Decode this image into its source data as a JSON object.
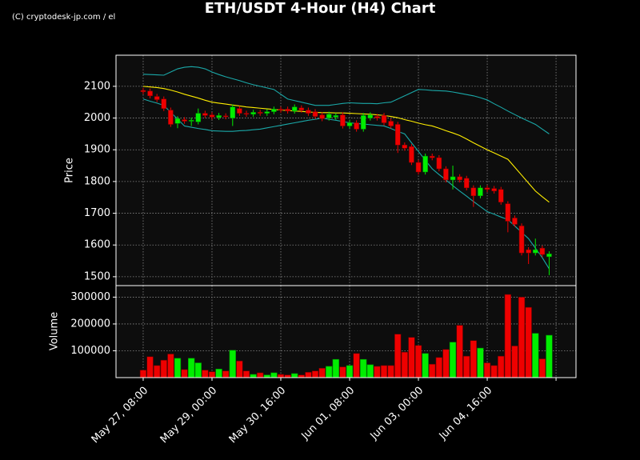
{
  "watermark": "(C) cryptodesk-jp.com / el",
  "title": "ETH/USDT 4-Hour (H4) Chart",
  "chart_data": [
    {
      "type": "candlestick",
      "ylabel": "Price",
      "x": [
        "May 27, 08:00",
        "May 27, 12:00",
        "May 27, 16:00",
        "May 27, 20:00",
        "May 28, 00:00",
        "May 28, 04:00",
        "May 28, 08:00",
        "May 28, 12:00",
        "May 28, 16:00",
        "May 28, 20:00",
        "May 29, 00:00",
        "May 29, 04:00",
        "May 29, 08:00",
        "May 29, 12:00",
        "May 29, 16:00",
        "May 29, 20:00",
        "May 30, 00:00",
        "May 30, 04:00",
        "May 30, 08:00",
        "May 30, 12:00",
        "May 30, 16:00",
        "May 30, 20:00",
        "May 31, 00:00",
        "May 31, 04:00",
        "May 31, 08:00",
        "May 31, 12:00",
        "May 31, 16:00",
        "May 31, 20:00",
        "Jun 01, 00:00",
        "Jun 01, 04:00",
        "Jun 01, 08:00",
        "Jun 01, 12:00",
        "Jun 01, 16:00",
        "Jun 01, 20:00",
        "Jun 02, 00:00",
        "Jun 02, 04:00",
        "Jun 02, 08:00",
        "Jun 02, 12:00",
        "Jun 02, 16:00",
        "Jun 02, 20:00",
        "Jun 03, 00:00",
        "Jun 03, 04:00",
        "Jun 03, 08:00",
        "Jun 03, 12:00",
        "Jun 03, 16:00",
        "Jun 03, 20:00",
        "Jun 04, 00:00",
        "Jun 04, 04:00",
        "Jun 04, 08:00",
        "Jun 04, 12:00",
        "Jun 04, 16:00",
        "Jun 04, 20:00",
        "Jun 05, 00:00",
        "Jun 05, 04:00",
        "Jun 05, 08:00",
        "Jun 05, 12:00",
        "Jun 05, 16:00",
        "Jun 05, 20:00",
        "Jun 06, 00:00",
        "Jun 06, 04:00"
      ],
      "open": [
        2087,
        2085,
        2068,
        2060,
        2025,
        1983,
        1995,
        1990,
        1988,
        2015,
        2010,
        2002,
        2007,
        2000,
        2030,
        2015,
        2012,
        2018,
        2015,
        2020,
        2028,
        2028,
        2022,
        2032,
        2025,
        2020,
        2010,
        2000,
        2003,
        2010,
        1975,
        1985,
        1965,
        2000,
        2005,
        2008,
        1990,
        1980,
        1915,
        1910,
        1860,
        1830,
        1880,
        1875,
        1840,
        1805,
        1815,
        1810,
        1780,
        1755,
        1780,
        1778,
        1775,
        1730,
        1685,
        1660,
        1585,
        1575,
        1590,
        1563
      ],
      "high": [
        2095,
        2093,
        2076,
        2068,
        2033,
        2006,
        2003,
        2001,
        2030,
        2023,
        2018,
        2016,
        2015,
        2043,
        2038,
        2023,
        2026,
        2026,
        2028,
        2036,
        2036,
        2036,
        2043,
        2040,
        2033,
        2028,
        2018,
        2020,
        2016,
        2018,
        1993,
        1993,
        2016,
        2018,
        2013,
        2016,
        1998,
        1988,
        1923,
        1918,
        1868,
        1888,
        1888,
        1883,
        1848,
        1850,
        1823,
        1818,
        1788,
        1788,
        1788,
        1786,
        1783,
        1738,
        1693,
        1668,
        1593,
        1620,
        1598,
        1580
      ],
      "low": [
        2075,
        2062,
        2050,
        2022,
        1972,
        1968,
        1982,
        1975,
        1980,
        2000,
        1995,
        1994,
        1996,
        1975,
        2007,
        2004,
        2004,
        2007,
        2007,
        2012,
        2017,
        2014,
        2014,
        2017,
        2007,
        1997,
        1990,
        1992,
        1995,
        1967,
        1967,
        1957,
        1957,
        1992,
        1992,
        1977,
        1967,
        1890,
        1897,
        1852,
        1822,
        1822,
        1867,
        1832,
        1797,
        1775,
        1797,
        1772,
        1720,
        1747,
        1767,
        1762,
        1727,
        1640,
        1657,
        1567,
        1540,
        1567,
        1562,
        1505
      ],
      "close": [
        2083,
        2070,
        2058,
        2030,
        1980,
        1998,
        1990,
        1993,
        2015,
        2008,
        2003,
        2008,
        2004,
        2035,
        2015,
        2012,
        2018,
        2015,
        2020,
        2028,
        2025,
        2022,
        2035,
        2025,
        2015,
        2005,
        1998,
        2012,
        2008,
        1975,
        1985,
        1965,
        2008,
        2010,
        2000,
        1985,
        1975,
        1915,
        1905,
        1860,
        1830,
        1880,
        1875,
        1840,
        1805,
        1815,
        1805,
        1780,
        1755,
        1780,
        1775,
        1770,
        1735,
        1675,
        1665,
        1575,
        1575,
        1585,
        1570,
        1572
      ],
      "up_color": "#00ee00",
      "down_color": "#ee0000",
      "lines": [
        {
          "color": "#ffee00",
          "values": [
            2100,
            2098,
            2096,
            2093,
            2088,
            2082,
            2075,
            2069,
            2063,
            2056,
            2050,
            2047,
            2044,
            2041,
            2038,
            2035,
            2033,
            2031,
            2029,
            2027,
            2025,
            2024,
            2022,
            2021,
            2019,
            2018,
            2017,
            2017,
            2016,
            2016,
            2015,
            2014,
            2013,
            2012,
            2010,
            2008,
            2005,
            2001,
            1995,
            1990,
            1984,
            1979,
            1975,
            1968,
            1960,
            1953,
            1945,
            1934,
            1922,
            1911,
            1900,
            1890,
            1880,
            1870,
            1845,
            1820,
            1795,
            1770,
            1752,
            1735
          ]
        },
        {
          "color": "#1aa8a8",
          "values": [
            2138,
            2137,
            2136,
            2135,
            2145,
            2155,
            2160,
            2162,
            2160,
            2155,
            2145,
            2137,
            2130,
            2124,
            2118,
            2111,
            2105,
            2100,
            2095,
            2090,
            2075,
            2060,
            2055,
            2050,
            2045,
            2040,
            2040,
            2040,
            2043,
            2046,
            2048,
            2047,
            2046,
            2046,
            2045,
            2048,
            2050,
            2060,
            2070,
            2080,
            2090,
            2089,
            2087,
            2086,
            2085,
            2082,
            2078,
            2074,
            2070,
            2064,
            2057,
            2045,
            2034,
            2022,
            2011,
            2000,
            1990,
            1980,
            1965,
            1950
          ]
        },
        {
          "color": "#1aa8a8",
          "values": [
            2060,
            2053,
            2047,
            2040,
            2018,
            1997,
            1975,
            1971,
            1967,
            1964,
            1960,
            1959,
            1958,
            1958,
            1960,
            1961,
            1963,
            1965,
            1969,
            1973,
            1977,
            1981,
            1985,
            1989,
            1993,
            1996,
            2000,
            1996,
            1993,
            1989,
            1985,
            1983,
            1981,
            1979,
            1977,
            1975,
            1967,
            1958,
            1950,
            1922,
            1895,
            1867,
            1840,
            1822,
            1805,
            1787,
            1770,
            1754,
            1737,
            1721,
            1705,
            1697,
            1688,
            1680,
            1660,
            1640,
            1620,
            1590,
            1560,
            1525
          ]
        }
      ],
      "xlim": [
        -3.95,
        62.9
      ],
      "xticks": [
        {
          "value": 0,
          "label": "May 27, 08:00"
        },
        {
          "value": 10,
          "label": "May 29, 00:00"
        },
        {
          "value": 20,
          "label": "May 30, 16:00"
        },
        {
          "value": 30,
          "label": "Jun 01, 08:00"
        },
        {
          "value": 40,
          "label": "Jun 03, 00:00"
        },
        {
          "value": 50,
          "label": "Jun 04, 16:00"
        },
        {
          "value": 60,
          "label": null
        }
      ],
      "ylim": [
        1472,
        2198
      ],
      "yticks": [
        1500,
        1600,
        1700,
        1800,
        1900,
        2000,
        2100
      ],
      "grid": true
    },
    {
      "type": "bar",
      "ylabel": "Volume",
      "values": [
        28000,
        78000,
        45000,
        65000,
        88000,
        72000,
        30000,
        72000,
        55000,
        28000,
        22000,
        32000,
        25000,
        102000,
        62000,
        25000,
        12000,
        18000,
        10000,
        18000,
        12000,
        10000,
        15000,
        10000,
        20000,
        25000,
        35000,
        42000,
        68000,
        40000,
        45000,
        90000,
        68000,
        48000,
        42000,
        45000,
        45000,
        162000,
        95000,
        150000,
        120000,
        90000,
        50000,
        75000,
        105000,
        132000,
        195000,
        80000,
        138000,
        110000,
        55000,
        45000,
        80000,
        310000,
        118000,
        300000,
        262000,
        165000,
        70000,
        158000
      ],
      "ylim": [
        0,
        343000
      ],
      "yticks": [
        100000,
        200000,
        300000
      ],
      "grid": true
    }
  ]
}
